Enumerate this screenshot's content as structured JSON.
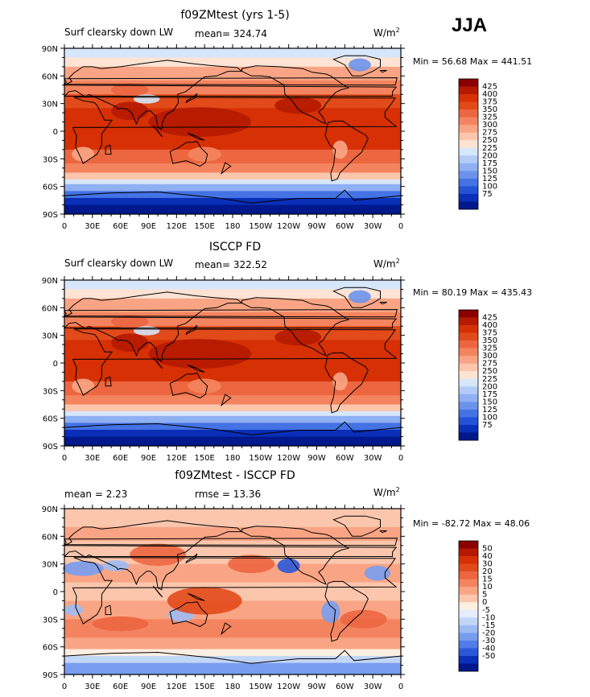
{
  "season": "JJA",
  "lon_ticks": [
    "0",
    "30E",
    "60E",
    "90E",
    "120E",
    "150E",
    "180",
    "150W",
    "120W",
    "90W",
    "60W",
    "30W",
    "0"
  ],
  "lat_ticks": [
    "90N",
    "60N",
    "30N",
    "0",
    "30S",
    "60S",
    "90S"
  ],
  "panels": [
    {
      "title": "f09ZMtest (yrs 1-5)",
      "left_label": "Surf clearsky down LW",
      "center_label": "mean= 324.74",
      "units": "W/m",
      "units_exp": "2",
      "min_max": "Min =  56.68 Max = 441.51",
      "levels": [
        "425",
        "400",
        "375",
        "350",
        "325",
        "300",
        "275",
        "250",
        "225",
        "200",
        "175",
        "150",
        "125",
        "100",
        "75"
      ],
      "colors": [
        "#8b0000",
        "#b51a00",
        "#d63004",
        "#e24a1a",
        "#ec6640",
        "#f4845f",
        "#f9a585",
        "#fbc6ac",
        "#fde3d3",
        "#d6e6fb",
        "#b2ccf7",
        "#8fb0f2",
        "#6c93ec",
        "#4473e4",
        "#2452d6",
        "#0a2fb8",
        "#00188c"
      ],
      "mode": "abs"
    },
    {
      "title": "ISCCP FD",
      "left_label": "Surf clearsky down LW",
      "center_label": "mean= 322.52",
      "units": "W/m",
      "units_exp": "2",
      "min_max": "Min =  80.19 Max = 435.43",
      "levels": [
        "425",
        "400",
        "375",
        "350",
        "325",
        "300",
        "275",
        "250",
        "225",
        "200",
        "175",
        "150",
        "125",
        "100",
        "75"
      ],
      "colors": [
        "#8b0000",
        "#b51a00",
        "#d63004",
        "#e24a1a",
        "#ec6640",
        "#f4845f",
        "#f9a585",
        "#fbc6ac",
        "#fde3d3",
        "#d6e6fb",
        "#b2ccf7",
        "#8fb0f2",
        "#6c93ec",
        "#4473e4",
        "#2452d6",
        "#0a2fb8",
        "#00188c"
      ],
      "mode": "abs"
    },
    {
      "title": "f09ZMtest - ISCCP FD",
      "left_label": "mean =    2.23",
      "center_label": "rmse =   13.36",
      "units": "W/m",
      "units_exp": "2",
      "min_max": "Min = -82.72 Max =  48.06",
      "levels": [
        "50",
        "40",
        "30",
        "20",
        "15",
        "10",
        "5",
        "0",
        "-5",
        "-10",
        "-15",
        "-20",
        "-30",
        "-40",
        "-50"
      ],
      "colors": [
        "#8b0000",
        "#b51a00",
        "#d63004",
        "#e24a1a",
        "#ec6640",
        "#f4845f",
        "#f9a585",
        "#fbc6ac",
        "#fdeee2",
        "#e3edfc",
        "#c2d6f8",
        "#9dbbf3",
        "#789df0",
        "#4f7ce6",
        "#2b58d8",
        "#0a2fb8",
        "#00188c"
      ],
      "mode": "diff"
    }
  ],
  "chart_data": {
    "type": "heatmap",
    "x_axis": {
      "range": [
        0,
        360
      ],
      "ticks": [
        "0",
        "30E",
        "60E",
        "90E",
        "120E",
        "150E",
        "180",
        "150W",
        "120W",
        "90W",
        "60W",
        "30W",
        "0"
      ]
    },
    "y_axis": {
      "range": [
        -90,
        90
      ],
      "ticks": [
        "90N",
        "60N",
        "30N",
        "0",
        "30S",
        "60S",
        "90S"
      ]
    },
    "series": [
      {
        "name": "f09ZMtest (yrs 1-5)",
        "variable": "Surf clearsky down LW",
        "mean": 324.74,
        "min": 56.68,
        "max": 441.51,
        "units": "W/m2"
      },
      {
        "name": "ISCCP FD",
        "variable": "Surf clearsky down LW",
        "mean": 322.52,
        "min": 80.19,
        "max": 435.43,
        "units": "W/m2"
      },
      {
        "name": "f09ZMtest - ISCCP FD",
        "mean": 2.23,
        "rmse": 13.36,
        "min": -82.72,
        "max": 48.06,
        "units": "W/m2"
      }
    ]
  }
}
